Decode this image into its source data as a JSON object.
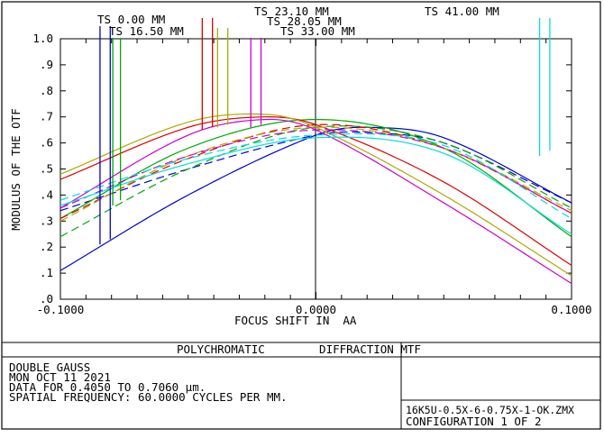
{
  "chart_data": {
    "type": "line",
    "ylabel": "MODULUS OF THE OTF",
    "xlabel": "FOCUS SHIFT IN  AA",
    "xlim": [
      -0.1,
      0.1
    ],
    "ylim": [
      0.0,
      1.0
    ],
    "x_ticks": [
      "-0.1000",
      "0.0000",
      "0.1000"
    ],
    "y_ticks": [
      ".0",
      ".1",
      ".2",
      ".3",
      ".4",
      ".5",
      ".6",
      ".7",
      ".8",
      ".9",
      "1.0"
    ],
    "field_labels": [
      "TS 0.00 MM",
      "TS 16.50 MM",
      "TS 23.10 MM",
      "TS 28.05 MM",
      "TS 33.00 MM",
      "TS 41.00 MM"
    ],
    "series": [
      {
        "color": "#0000cc",
        "style": "solid",
        "x": [
          -0.1,
          -0.05,
          0.0,
          0.02,
          0.05,
          0.1
        ],
        "y": [
          0.11,
          0.4,
          0.63,
          0.66,
          0.62,
          0.37
        ]
      },
      {
        "color": "#0000cc",
        "style": "dashed",
        "x": [
          -0.1,
          -0.05,
          0.0,
          0.02,
          0.05,
          0.1
        ],
        "y": [
          0.34,
          0.5,
          0.63,
          0.64,
          0.6,
          0.37
        ]
      },
      {
        "color": "#00aa00",
        "style": "solid",
        "x": [
          -0.1,
          -0.05,
          0.0,
          0.05,
          0.1
        ],
        "y": [
          0.31,
          0.58,
          0.69,
          0.58,
          0.24
        ]
      },
      {
        "color": "#00aa00",
        "style": "dashed",
        "x": [
          -0.1,
          -0.05,
          0.0,
          0.05,
          0.1
        ],
        "y": [
          0.24,
          0.5,
          0.66,
          0.6,
          0.35
        ]
      },
      {
        "color": "#dd0000",
        "style": "solid",
        "x": [
          -0.1,
          -0.05,
          -0.02,
          0.0,
          0.05,
          0.1
        ],
        "y": [
          0.46,
          0.66,
          0.7,
          0.67,
          0.45,
          0.13
        ]
      },
      {
        "color": "#dd0000",
        "style": "dashed",
        "x": [
          -0.1,
          -0.05,
          0.0,
          0.05,
          0.1
        ],
        "y": [
          0.31,
          0.54,
          0.67,
          0.58,
          0.33
        ]
      },
      {
        "color": "#aaaa00",
        "style": "solid",
        "x": [
          -0.1,
          -0.05,
          -0.02,
          0.0,
          0.05,
          0.1
        ],
        "y": [
          0.48,
          0.68,
          0.71,
          0.66,
          0.4,
          0.09
        ]
      },
      {
        "color": "#aaaa00",
        "style": "dashed",
        "x": [
          -0.1,
          -0.05,
          0.0,
          0.05,
          0.1
        ],
        "y": [
          0.3,
          0.55,
          0.66,
          0.58,
          0.34
        ]
      },
      {
        "color": "#cc00cc",
        "style": "solid",
        "x": [
          -0.1,
          -0.05,
          -0.02,
          0.0,
          0.05,
          0.1
        ],
        "y": [
          0.35,
          0.63,
          0.69,
          0.65,
          0.37,
          0.06
        ]
      },
      {
        "color": "#cc00cc",
        "style": "dashed",
        "x": [
          -0.1,
          -0.05,
          0.0,
          0.05,
          0.1
        ],
        "y": [
          0.35,
          0.55,
          0.65,
          0.58,
          0.33
        ]
      },
      {
        "color": "#00dddd",
        "style": "solid",
        "x": [
          -0.1,
          -0.05,
          0.0,
          0.05,
          0.1
        ],
        "y": [
          0.36,
          0.52,
          0.62,
          0.56,
          0.25
        ]
      },
      {
        "color": "#00dddd",
        "style": "dashed",
        "x": [
          -0.1,
          -0.05,
          0.0,
          0.05,
          0.1
        ],
        "y": [
          0.38,
          0.54,
          0.63,
          0.59,
          0.31
        ]
      }
    ],
    "markers": [
      {
        "label_index": 0,
        "color": "#0000cc",
        "x": -0.0845,
        "y_low": 0.21
      },
      {
        "label_index": 0,
        "color": "#0000cc",
        "x": -0.0805,
        "y_low": 0.23
      },
      {
        "label_index": 1,
        "color": "#00aa00",
        "x": -0.0795,
        "y_low": 0.36
      },
      {
        "label_index": 1,
        "color": "#00aa00",
        "x": -0.0765,
        "y_low": 0.38
      },
      {
        "label_index": 2,
        "color": "#dd0000",
        "x": -0.0445,
        "y_low": 0.65
      },
      {
        "label_index": 2,
        "color": "#dd0000",
        "x": -0.0405,
        "y_low": 0.66
      },
      {
        "label_index": 3,
        "color": "#aaaa00",
        "x": -0.0385,
        "y_low": 0.66
      },
      {
        "label_index": 3,
        "color": "#aaaa00",
        "x": -0.0345,
        "y_low": 0.67
      },
      {
        "label_index": 4,
        "color": "#cc00cc",
        "x": -0.0255,
        "y_low": 0.66
      },
      {
        "label_index": 4,
        "color": "#cc00cc",
        "x": -0.0215,
        "y_low": 0.67
      },
      {
        "label_index": 5,
        "color": "#00dddd",
        "x": 0.0875,
        "y_low": 0.55
      },
      {
        "label_index": 5,
        "color": "#00dddd",
        "x": 0.0915,
        "y_low": 0.57
      }
    ]
  },
  "footer": {
    "title": "POLYCHROMATIC        DIFFRACTION MTF",
    "lens_name": "DOUBLE GAUSS",
    "date": "MON OCT 11 2021",
    "wavelength": "DATA FOR 0.4050 TO 0.7060 μm.",
    "frequency": "SPATIAL FREQUENCY: 60.0000 CYCLES PER MM.",
    "filename": "16K5U-0.5X-6-0.75X-1-OK.ZMX",
    "configuration": "CONFIGURATION 1 OF 2"
  }
}
